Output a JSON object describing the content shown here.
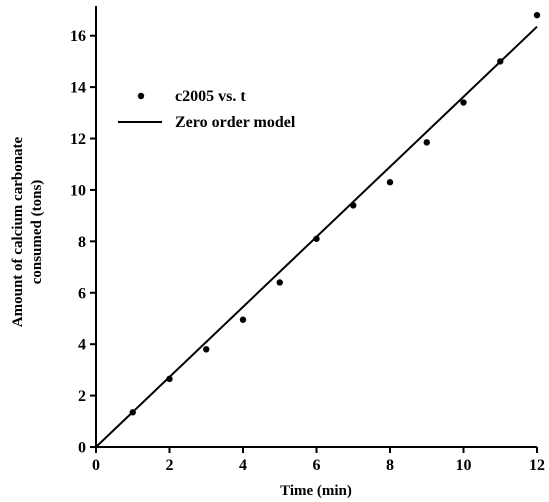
{
  "chart_data": {
    "type": "scatter",
    "xlabel": "Time (min)",
    "ylabel_lines": [
      "Amount of calcium carbonate",
      "consumed (tons)"
    ],
    "xlim": [
      0,
      12
    ],
    "ylim": [
      0,
      17
    ],
    "x_ticks": [
      0,
      2,
      4,
      6,
      8,
      10,
      12
    ],
    "x_tick_labels": [
      "0",
      "2",
      "4",
      "6",
      "8",
      "10",
      "12"
    ],
    "y_ticks": [
      0,
      2,
      4,
      6,
      8,
      10,
      12,
      14,
      16
    ],
    "y_tick_labels": [
      "0",
      "2",
      "4",
      "6",
      "8",
      "10",
      "12",
      "14",
      "16"
    ],
    "grid": false,
    "legend_position": "top-left",
    "series": [
      {
        "name": "c2005 vs. t",
        "kind": "scatter",
        "color": "#000000",
        "x": [
          1,
          2,
          3,
          4,
          5,
          6,
          7,
          8,
          9,
          10,
          11,
          12
        ],
        "y": [
          1.35,
          2.65,
          3.8,
          4.95,
          6.4,
          8.1,
          9.4,
          10.3,
          11.85,
          13.4,
          15.0,
          16.8
        ]
      },
      {
        "name": "Zero order model",
        "kind": "line",
        "color": "#000000",
        "x": [
          0,
          12
        ],
        "y": [
          0,
          16.35
        ]
      }
    ]
  }
}
